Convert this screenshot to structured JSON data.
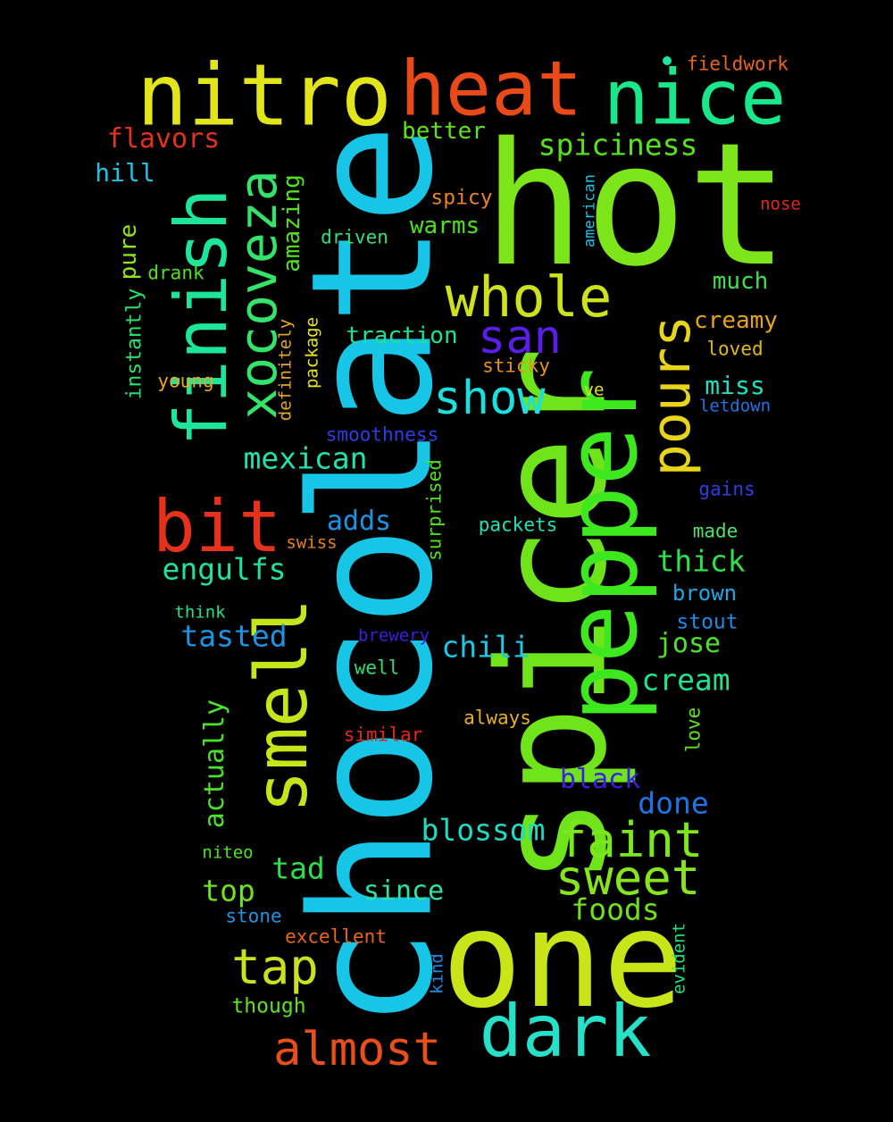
{
  "words": [
    {
      "text": "chocolate",
      "color": "#17c6e6"
    },
    {
      "text": "spicer",
      "color": "#70e41b"
    },
    {
      "text": "pepper",
      "color": "#3ee81f"
    },
    {
      "text": "hot",
      "color": "#7ce61b"
    },
    {
      "text": "one",
      "color": "#c8e51a"
    },
    {
      "text": "smell",
      "color": "#c6e41a"
    },
    {
      "text": "finish",
      "color": "#1de69b"
    },
    {
      "text": "nitro",
      "color": "#e1e519"
    },
    {
      "text": "heat",
      "color": "#ea4a17"
    },
    {
      "text": "nice",
      "color": "#18e88a"
    },
    {
      "text": "xocoveza",
      "color": "#33e36a"
    },
    {
      "text": "pours",
      "color": "#e8d418"
    },
    {
      "text": "whole",
      "color": "#cde21b"
    },
    {
      "text": "dark",
      "color": "#26e0c8"
    },
    {
      "text": "bit",
      "color": "#e6321a"
    },
    {
      "text": "san",
      "color": "#5a1ee8"
    },
    {
      "text": "show",
      "color": "#1cdfe0"
    },
    {
      "text": "faint",
      "color": "#7ae81a"
    },
    {
      "text": "sweet",
      "color": "#86e61b"
    },
    {
      "text": "tap",
      "color": "#cae11d"
    },
    {
      "text": "almost",
      "color": "#ea4e19"
    },
    {
      "text": "mexican",
      "color": "#1ee4b0"
    },
    {
      "text": "engulfs",
      "color": "#1ce2a2"
    },
    {
      "text": "tasted",
      "color": "#1c94e4"
    },
    {
      "text": "chili",
      "color": "#1cc8e6"
    },
    {
      "text": "cream",
      "color": "#1ee48a"
    },
    {
      "text": "blossom",
      "color": "#1edcc4"
    },
    {
      "text": "spiciness",
      "color": "#58e21a"
    },
    {
      "text": "flavors",
      "color": "#e5311c"
    },
    {
      "text": "hill",
      "color": "#1cc2e2"
    },
    {
      "text": "better",
      "color": "#5ce31a"
    },
    {
      "text": "amazing",
      "color": "#4ee31a"
    },
    {
      "text": "warms",
      "color": "#4ce21c"
    },
    {
      "text": "spicy",
      "color": "#e8822a"
    },
    {
      "text": "driven",
      "color": "#2ee07a"
    },
    {
      "text": "drank",
      "color": "#4ee21c"
    },
    {
      "text": "pure",
      "color": "#8ee31a"
    },
    {
      "text": "much",
      "color": "#3ee04a"
    },
    {
      "text": "creamy",
      "color": "#e8a21c"
    },
    {
      "text": "traction",
      "color": "#1ee28e"
    },
    {
      "text": "loved",
      "color": "#e2b81c"
    },
    {
      "text": "sticky",
      "color": "#e8921c"
    },
    {
      "text": "miss",
      "color": "#1ee0c0"
    },
    {
      "text": "ve",
      "color": "#e2e21c"
    },
    {
      "text": "letdown",
      "color": "#1c74e6"
    },
    {
      "text": "instantly",
      "color": "#1ee46a"
    },
    {
      "text": "young",
      "color": "#e8a61c"
    },
    {
      "text": "definitely",
      "color": "#e8a81c"
    },
    {
      "text": "package",
      "color": "#e8e41a"
    },
    {
      "text": "smoothness",
      "color": "#2c3ee6"
    },
    {
      "text": "surprised",
      "color": "#4ee21c"
    },
    {
      "text": "adds",
      "color": "#1c94e6"
    },
    {
      "text": "packets",
      "color": "#1ee2b6"
    },
    {
      "text": "gains",
      "color": "#2c3ee6"
    },
    {
      "text": "made",
      "color": "#4ee06a"
    },
    {
      "text": "swiss",
      "color": "#e8821a"
    },
    {
      "text": "thick",
      "color": "#2ee04a"
    },
    {
      "text": "brown",
      "color": "#1ca8e6"
    },
    {
      "text": "think",
      "color": "#1ce28e"
    },
    {
      "text": "stout",
      "color": "#1c8ae6"
    },
    {
      "text": "jose",
      "color": "#4ee22a"
    },
    {
      "text": "brewery",
      "color": "#3a1ee6"
    },
    {
      "text": "well",
      "color": "#2ee06a"
    },
    {
      "text": "similar",
      "color": "#e6261c"
    },
    {
      "text": "always",
      "color": "#e8b01c"
    },
    {
      "text": "love",
      "color": "#5ee21c"
    },
    {
      "text": "actually",
      "color": "#4ae22a"
    },
    {
      "text": "black",
      "color": "#3a1ee6"
    },
    {
      "text": "done",
      "color": "#1c74e6"
    },
    {
      "text": "niteo",
      "color": "#4ee21c"
    },
    {
      "text": "tad",
      "color": "#2ee04a"
    },
    {
      "text": "since",
      "color": "#2ee2a2"
    },
    {
      "text": "top",
      "color": "#6ee21c"
    },
    {
      "text": "foods",
      "color": "#6ee21c"
    },
    {
      "text": "stone",
      "color": "#1c94e6"
    },
    {
      "text": "excellent",
      "color": "#e8661c"
    },
    {
      "text": "kind",
      "color": "#1c8ae6"
    },
    {
      "text": "evident",
      "color": "#1ee27a"
    },
    {
      "text": "though",
      "color": "#5ee21c"
    },
    {
      "text": "fieldwork",
      "color": "#e8661c"
    },
    {
      "text": "nose",
      "color": "#e6261c"
    },
    {
      "text": "american",
      "color": "#1cc2e6"
    }
  ]
}
